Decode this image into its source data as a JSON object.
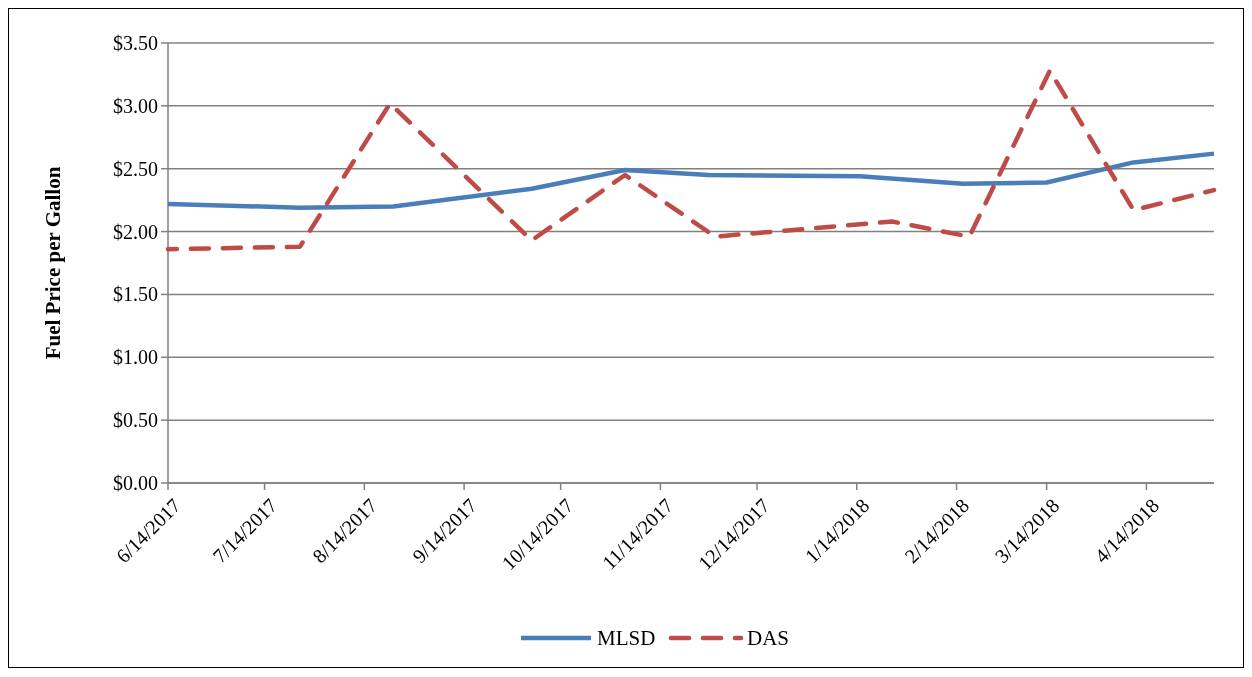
{
  "chart_data": {
    "type": "line",
    "ylabel": "Fuel Price per Gallon",
    "xlim": [
      "2017-06-14",
      "2018-05-05"
    ],
    "xticks": [
      {
        "value": "2017-06-14",
        "label": "6/14/2017"
      },
      {
        "value": "2017-07-14",
        "label": "7/14/2017"
      },
      {
        "value": "2017-08-14",
        "label": "8/14/2017"
      },
      {
        "value": "2017-09-14",
        "label": "9/14/2017"
      },
      {
        "value": "2017-10-14",
        "label": "10/14/2017"
      },
      {
        "value": "2017-11-14",
        "label": "11/14/2017"
      },
      {
        "value": "2017-12-14",
        "label": "12/14/2017"
      },
      {
        "value": "2018-01-14",
        "label": "1/14/2018"
      },
      {
        "value": "2018-02-14",
        "label": "2/14/2018"
      },
      {
        "value": "2018-03-14",
        "label": "3/14/2018"
      },
      {
        "value": "2018-04-14",
        "label": "4/14/2018"
      }
    ],
    "ylim": [
      0,
      3.5
    ],
    "yticks": [
      {
        "value": 0,
        "label": "$0.00"
      },
      {
        "value": 0.5,
        "label": "$0.50"
      },
      {
        "value": 1,
        "label": "$1.00"
      },
      {
        "value": 1.5,
        "label": "$1.50"
      },
      {
        "value": 2,
        "label": "$2.00"
      },
      {
        "value": 2.5,
        "label": "$2.50"
      },
      {
        "value": 3,
        "label": "$3.00"
      },
      {
        "value": 3.5,
        "label": "$3.50"
      }
    ],
    "grid": "y",
    "legend": "bottom",
    "series": [
      {
        "name": "MLSD",
        "color": "#4a7ebb",
        "line_style": "solid",
        "x": [
          "2017-06-14",
          "2017-07-25",
          "2017-08-23",
          "2017-10-05",
          "2017-11-03",
          "2017-11-29",
          "2018-01-15",
          "2018-02-16",
          "2018-03-14",
          "2018-04-10",
          "2018-05-05"
        ],
        "values": [
          2.22,
          2.19,
          2.2,
          2.34,
          2.49,
          2.45,
          2.44,
          2.38,
          2.39,
          2.55,
          2.62
        ]
      },
      {
        "name": "DAS",
        "color": "#be4b48",
        "line_style": "dashed",
        "x": [
          "2017-06-14",
          "2017-07-25",
          "2017-08-22",
          "2017-10-05",
          "2017-11-03",
          "2017-12-01",
          "2018-01-25",
          "2018-02-18",
          "2018-03-15",
          "2018-04-10",
          "2018-05-05"
        ],
        "values": [
          1.86,
          1.88,
          3.02,
          1.93,
          2.45,
          1.96,
          2.08,
          1.96,
          3.28,
          2.17,
          2.33
        ]
      }
    ]
  }
}
